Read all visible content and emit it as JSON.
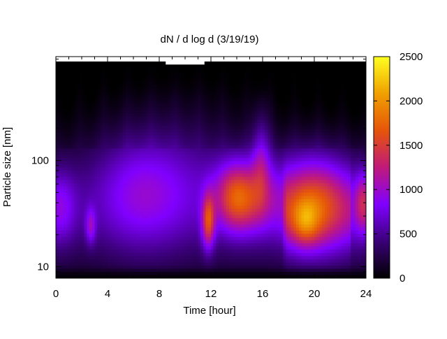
{
  "chart_data": {
    "type": "heatmap",
    "title": "dN / d log d (3/19/19)",
    "xlabel": "Time [hour]",
    "ylabel": "Particle size [nm]",
    "xlim": [
      0,
      24
    ],
    "ylim": [
      7.8,
      950
    ],
    "y_scale": "log",
    "x_ticks": [
      "0",
      "4",
      "8",
      "12",
      "16",
      "20",
      "24"
    ],
    "y_ticks": [
      "10",
      "100"
    ],
    "colorbar": {
      "range": [
        0,
        2500
      ],
      "ticks": [
        "0",
        "500",
        "1000",
        "1500",
        "2000",
        "2500"
      ],
      "palette": [
        "#000000",
        "#3a0078",
        "#8000ff",
        "#c01a7a",
        "#e6550a",
        "#f0a000",
        "#ffff20"
      ]
    },
    "features": [
      {
        "region": "0–1 h, 20–60 nm",
        "level": 650
      },
      {
        "region": "2.7 h, 20–30 nm",
        "level": 700
      },
      {
        "region": "11.6–12.4 h, 15–40 nm",
        "level": 1350
      },
      {
        "region": "13–16 h, 30–100 nm",
        "level": 1100
      },
      {
        "region": "15.8 h, 80–300 nm",
        "level": 850
      },
      {
        "region": "17.7–22.5 h, 15–100 nm",
        "level": 1400
      },
      {
        "region": "19.3 h, ~25 nm (peak)",
        "level": 1700
      },
      {
        "region": "23.7 h, 30–70 nm",
        "level": 1000
      }
    ],
    "missing_data": [
      {
        "x_range": [
          5.2,
          5.4
        ],
        "y_from": 860
      },
      {
        "x_range": [
          8.5,
          11.5
        ],
        "y_from": 800
      }
    ]
  }
}
